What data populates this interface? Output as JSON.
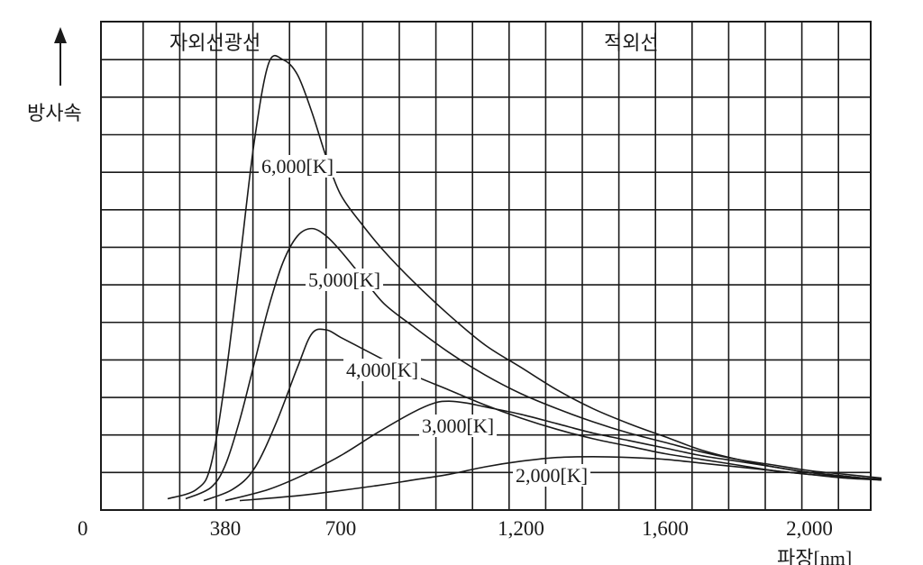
{
  "chart_data": {
    "type": "line",
    "title": "",
    "ylabel": "방사속",
    "xlabel": "파장[nm]",
    "origin_label": "0",
    "x_ticks": [
      380,
      700,
      1200,
      1600,
      2000
    ],
    "x_tick_labels": [
      "380",
      "700",
      "1,200",
      "1,600",
      "2,000"
    ],
    "region_labels": [
      "자외선광선",
      "적외선"
    ],
    "grid": true,
    "series": [
      {
        "name": "6,000[K]",
        "x": [
          220,
          300,
          340,
          380,
          420,
          460,
          500,
          540,
          580,
          620,
          660,
          700,
          760,
          820,
          900,
          1000,
          1100,
          1200,
          1300,
          1400,
          1500,
          1600,
          1700,
          1800,
          1900,
          2000,
          2100,
          2200
        ],
        "y": [
          0.3,
          0.55,
          1.2,
          3.5,
          6.6,
          9.8,
          11.9,
          12.0,
          11.6,
          10.6,
          9.4,
          8.4,
          7.6,
          6.9,
          6.1,
          5.2,
          4.4,
          3.8,
          3.2,
          2.7,
          2.3,
          1.95,
          1.6,
          1.35,
          1.15,
          1.0,
          0.9,
          0.8
        ]
      },
      {
        "name": "5,000[K]",
        "x": [
          270,
          340,
          380,
          420,
          460,
          500,
          540,
          580,
          620,
          660,
          700,
          760,
          820,
          900,
          1000,
          1100,
          1200,
          1300,
          1400,
          1500,
          1600,
          1700,
          1800,
          1900,
          2000,
          2100,
          2200
        ],
        "y": [
          0.3,
          0.6,
          1.2,
          2.4,
          3.9,
          5.4,
          6.6,
          7.3,
          7.5,
          7.3,
          6.9,
          6.2,
          5.5,
          4.9,
          4.2,
          3.6,
          3.1,
          2.7,
          2.35,
          2.05,
          1.8,
          1.55,
          1.35,
          1.2,
          1.05,
          0.95,
          0.85
        ]
      },
      {
        "name": "4,000[K]",
        "x": [
          320,
          400,
          460,
          520,
          580,
          620,
          660,
          700,
          760,
          820,
          900,
          1000,
          1100,
          1200,
          1300,
          1400,
          1500,
          1600,
          1700,
          1800,
          1900,
          2000,
          2100,
          2200
        ],
        "y": [
          0.25,
          0.55,
          1.1,
          2.3,
          3.8,
          4.7,
          4.8,
          4.6,
          4.3,
          4.0,
          3.6,
          3.2,
          2.8,
          2.45,
          2.15,
          1.9,
          1.7,
          1.5,
          1.35,
          1.2,
          1.05,
          0.95,
          0.85,
          0.8
        ]
      },
      {
        "name": "3,000[K]",
        "x": [
          380,
          500,
          600,
          700,
          800,
          900,
          960,
          1000,
          1050,
          1100,
          1200,
          1300,
          1400,
          1500,
          1600,
          1700,
          1800,
          1900,
          2000,
          2100,
          2200
        ],
        "y": [
          0.25,
          0.55,
          0.95,
          1.45,
          2.05,
          2.6,
          2.85,
          2.9,
          2.85,
          2.75,
          2.55,
          2.3,
          2.05,
          1.85,
          1.65,
          1.45,
          1.3,
          1.15,
          1.0,
          0.9,
          0.8
        ]
      },
      {
        "name": "2,000[K]",
        "x": [
          420,
          600,
          800,
          900,
          1000,
          1100,
          1200,
          1300,
          1400,
          1500,
          1600,
          1700,
          1800,
          1900,
          2000,
          2100,
          2200
        ],
        "y": [
          0.25,
          0.4,
          0.65,
          0.8,
          0.95,
          1.15,
          1.3,
          1.4,
          1.42,
          1.4,
          1.35,
          1.25,
          1.15,
          1.05,
          0.95,
          0.88,
          0.82
        ]
      }
    ]
  }
}
